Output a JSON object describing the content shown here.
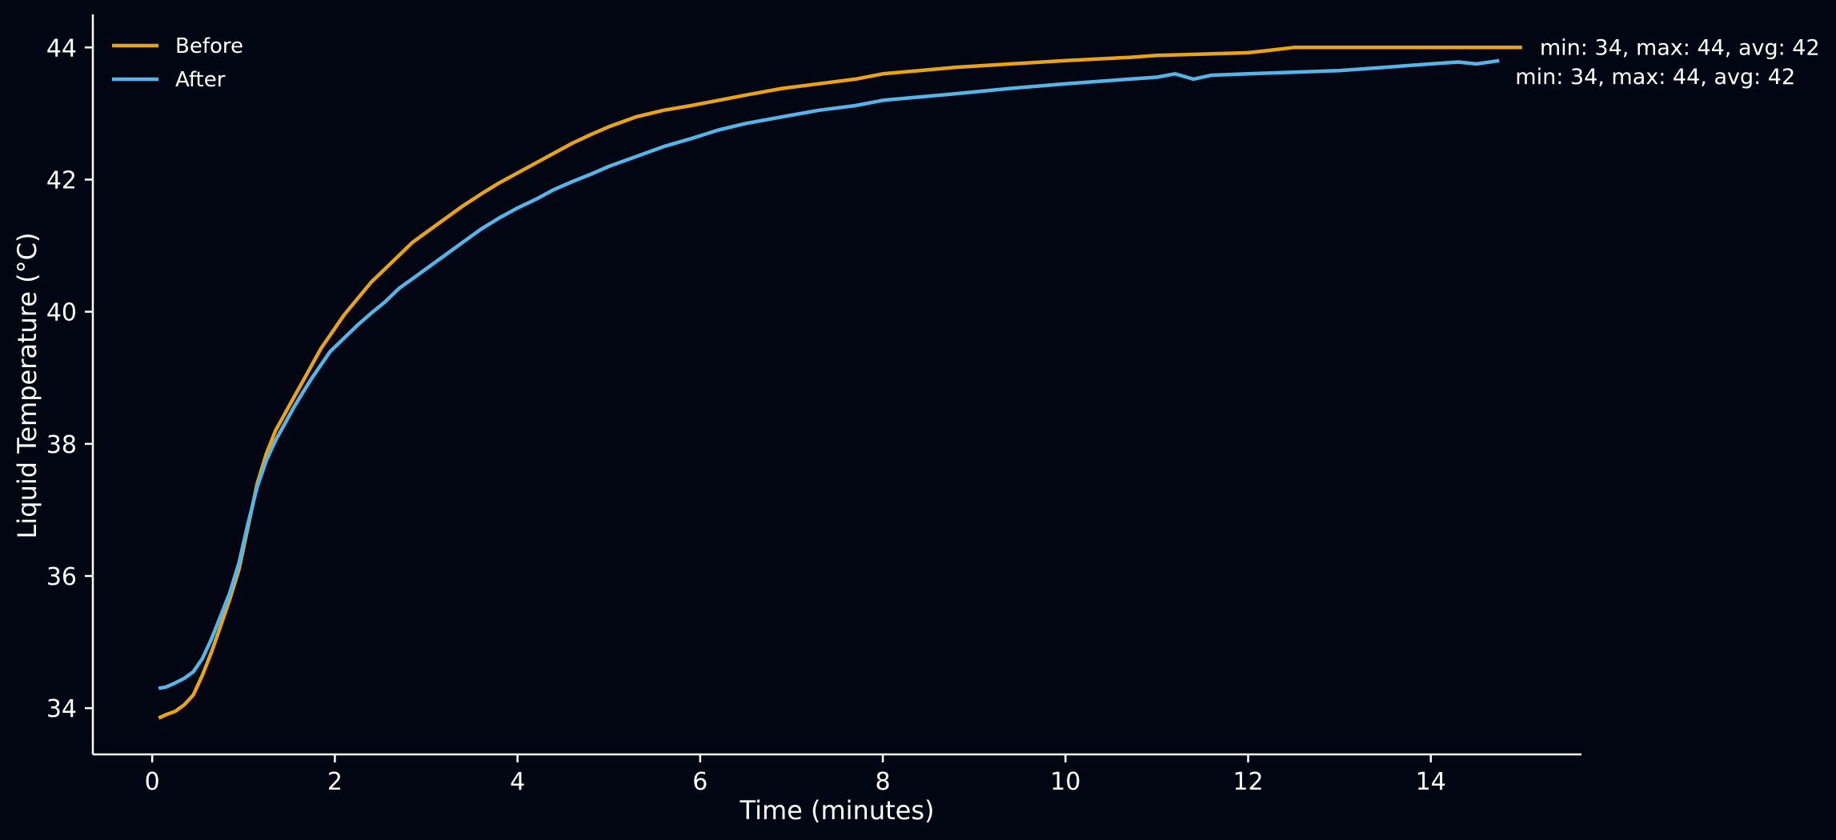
{
  "chart_data": {
    "type": "line",
    "title": "",
    "xlabel": "Time (minutes)",
    "ylabel": "Liquid Temperature (°C)",
    "xlim": [
      -0.65,
      15.65
    ],
    "ylim": [
      33.3,
      44.5
    ],
    "xticks": [
      0,
      2,
      4,
      6,
      8,
      10,
      12,
      14
    ],
    "yticks": [
      34,
      36,
      38,
      40,
      42,
      44
    ],
    "grid": false,
    "legend": "top-left",
    "background": "#020612",
    "axis_color": "#ffffff",
    "series": [
      {
        "name": "Before",
        "color": "#e8a317",
        "annotation": "min: 34, max: 44, avg: 42",
        "x": [
          0.07,
          0.15,
          0.25,
          0.35,
          0.45,
          0.55,
          0.65,
          0.75,
          0.85,
          0.95,
          1.05,
          1.15,
          1.25,
          1.35,
          1.45,
          1.55,
          1.65,
          1.75,
          1.85,
          1.95,
          2.1,
          2.25,
          2.4,
          2.55,
          2.7,
          2.85,
          3.0,
          3.2,
          3.4,
          3.6,
          3.8,
          4.0,
          4.2,
          4.4,
          4.6,
          4.8,
          5.0,
          5.3,
          5.6,
          5.9,
          6.2,
          6.5,
          6.9,
          7.3,
          7.7,
          8.0,
          8.4,
          8.8,
          9.4,
          10.0,
          10.7,
          11.0,
          11.5,
          12.0,
          12.2,
          12.5,
          13.0,
          14.0,
          15.0
        ],
        "y": [
          33.85,
          33.9,
          33.95,
          34.05,
          34.2,
          34.5,
          34.85,
          35.25,
          35.65,
          36.1,
          36.75,
          37.4,
          37.85,
          38.2,
          38.45,
          38.7,
          38.95,
          39.2,
          39.45,
          39.65,
          39.95,
          40.2,
          40.45,
          40.65,
          40.85,
          41.05,
          41.2,
          41.4,
          41.6,
          41.78,
          41.95,
          42.1,
          42.25,
          42.4,
          42.55,
          42.68,
          42.8,
          42.95,
          43.05,
          43.12,
          43.2,
          43.28,
          43.38,
          43.45,
          43.52,
          43.6,
          43.65,
          43.7,
          43.75,
          43.8,
          43.85,
          43.88,
          43.9,
          43.92,
          43.95,
          44.0,
          44.0,
          44.0,
          44.0
        ]
      },
      {
        "name": "After",
        "color": "#56b4e9",
        "annotation": "min: 34, max: 44, avg: 42",
        "x": [
          0.07,
          0.15,
          0.25,
          0.35,
          0.45,
          0.55,
          0.65,
          0.75,
          0.85,
          0.95,
          1.05,
          1.15,
          1.25,
          1.35,
          1.45,
          1.55,
          1.65,
          1.75,
          1.85,
          1.95,
          2.1,
          2.25,
          2.4,
          2.55,
          2.7,
          2.85,
          3.0,
          3.2,
          3.4,
          3.6,
          3.8,
          4.0,
          4.2,
          4.4,
          4.6,
          4.8,
          5.0,
          5.3,
          5.6,
          5.9,
          6.2,
          6.5,
          6.9,
          7.3,
          7.7,
          8.0,
          8.4,
          8.8,
          9.4,
          10.0,
          10.7,
          11.0,
          11.2,
          11.4,
          11.6,
          12.0,
          13.0,
          13.5,
          14.0,
          14.3,
          14.5,
          14.75
        ],
        "y": [
          34.3,
          34.32,
          34.38,
          34.45,
          34.55,
          34.75,
          35.05,
          35.4,
          35.75,
          36.2,
          36.8,
          37.35,
          37.75,
          38.05,
          38.3,
          38.55,
          38.78,
          39.0,
          39.2,
          39.4,
          39.6,
          39.8,
          39.98,
          40.15,
          40.35,
          40.5,
          40.65,
          40.85,
          41.05,
          41.25,
          41.42,
          41.57,
          41.7,
          41.85,
          41.97,
          42.08,
          42.2,
          42.35,
          42.5,
          42.62,
          42.75,
          42.85,
          42.95,
          43.05,
          43.12,
          43.2,
          43.25,
          43.3,
          43.38,
          43.45,
          43.52,
          43.55,
          43.6,
          43.52,
          43.58,
          43.6,
          43.65,
          43.7,
          43.75,
          43.78,
          43.75,
          43.8
        ]
      }
    ]
  }
}
